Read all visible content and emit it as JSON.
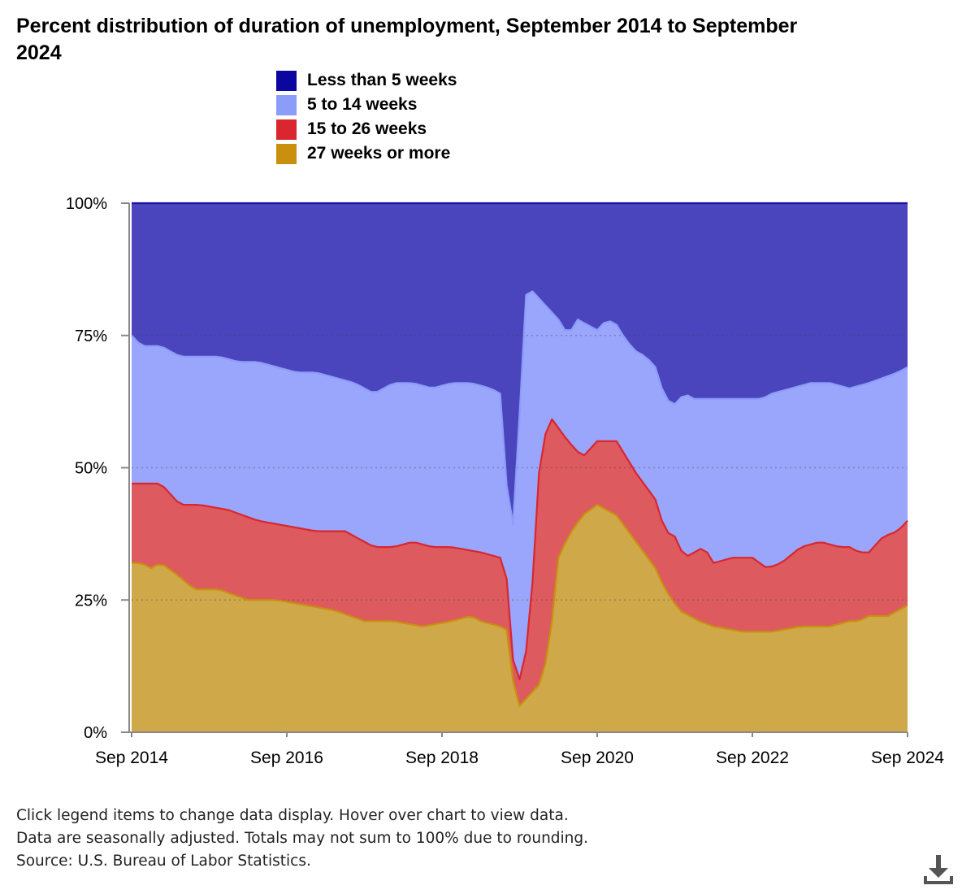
{
  "title": "Percent distribution of duration of unemployment, September 2014 to September 2024",
  "notes": [
    "Click legend items to change data display. Hover over chart to view data.",
    "Data are seasonally adjusted. Totals may not sum to 100% due to rounding.",
    "Source: U.S. Bureau of Labor Statistics."
  ],
  "download_icon": "download-icon",
  "chart_data": {
    "type": "area",
    "stacked": true,
    "x_start": "2014-09",
    "x_end": "2024-09",
    "x_ticks": [
      "Sep 2014",
      "Sep 2016",
      "Sep 2018",
      "Sep 2020",
      "Sep 2022",
      "Sep 2024"
    ],
    "y_ticks": [
      "0%",
      "25%",
      "50%",
      "75%",
      "100%"
    ],
    "ylim": [
      0,
      100
    ],
    "grid": true,
    "legend_position": "top",
    "series": [
      {
        "name": "27 weeks or more",
        "color": "#c8900e",
        "fill": "#cfa84a",
        "keypoints": [
          [
            0,
            32
          ],
          [
            2,
            32
          ],
          [
            4,
            31
          ],
          [
            6,
            32
          ],
          [
            9,
            30
          ],
          [
            13,
            27
          ],
          [
            18,
            27
          ],
          [
            24,
            25
          ],
          [
            30,
            25
          ],
          [
            36,
            24
          ],
          [
            42,
            23
          ],
          [
            48,
            21
          ],
          [
            54,
            21
          ],
          [
            60,
            20
          ],
          [
            66,
            21
          ],
          [
            70,
            22
          ],
          [
            72,
            21
          ],
          [
            76,
            20
          ],
          [
            78,
            19
          ],
          [
            79,
            5
          ],
          [
            80,
            5
          ],
          [
            82,
            7
          ],
          [
            84,
            9
          ],
          [
            86,
            15
          ],
          [
            88,
            33
          ],
          [
            90,
            37
          ],
          [
            93,
            41
          ],
          [
            96,
            43
          ],
          [
            100,
            41
          ],
          [
            104,
            36
          ],
          [
            108,
            31
          ],
          [
            110,
            27
          ],
          [
            113,
            23
          ],
          [
            117,
            21
          ],
          [
            120,
            20
          ],
          [
            126,
            19
          ],
          [
            132,
            19
          ],
          [
            138,
            20
          ],
          [
            144,
            20
          ],
          [
            148,
            21
          ],
          [
            150,
            21
          ],
          [
            152,
            22
          ],
          [
            156,
            22
          ],
          [
            158,
            23
          ],
          [
            160,
            24
          ]
        ]
      },
      {
        "name": "15 to 26 weeks",
        "color": "#d9262f",
        "fill": "#dd5a5f",
        "keypoints": [
          [
            0,
            47
          ],
          [
            6,
            47
          ],
          [
            10,
            43
          ],
          [
            14,
            43
          ],
          [
            20,
            42
          ],
          [
            26,
            40
          ],
          [
            32,
            39
          ],
          [
            38,
            38
          ],
          [
            44,
            38
          ],
          [
            50,
            35
          ],
          [
            54,
            35
          ],
          [
            58,
            36
          ],
          [
            62,
            35
          ],
          [
            66,
            35
          ],
          [
            72,
            34
          ],
          [
            76,
            33
          ],
          [
            78,
            27
          ],
          [
            79,
            7
          ],
          [
            80,
            10
          ],
          [
            82,
            18
          ],
          [
            84,
            49
          ],
          [
            86,
            60
          ],
          [
            90,
            55
          ],
          [
            93,
            52
          ],
          [
            96,
            55
          ],
          [
            100,
            55
          ],
          [
            104,
            49
          ],
          [
            108,
            44
          ],
          [
            110,
            38
          ],
          [
            112,
            37
          ],
          [
            114,
            33
          ],
          [
            118,
            35
          ],
          [
            120,
            32
          ],
          [
            124,
            33
          ],
          [
            128,
            33
          ],
          [
            131,
            31
          ],
          [
            134,
            32
          ],
          [
            138,
            35
          ],
          [
            142,
            36
          ],
          [
            146,
            35
          ],
          [
            148,
            35
          ],
          [
            150,
            34
          ],
          [
            152,
            34
          ],
          [
            155,
            37
          ],
          [
            158,
            38
          ],
          [
            160,
            40
          ]
        ]
      },
      {
        "name": "5 to 14 weeks",
        "color": "#8c9cf9",
        "fill": "#9aa6fb",
        "keypoints": [
          [
            0,
            75
          ],
          [
            2,
            73
          ],
          [
            6,
            73
          ],
          [
            10,
            71
          ],
          [
            14,
            71
          ],
          [
            18,
            71
          ],
          [
            22,
            70
          ],
          [
            26,
            70
          ],
          [
            30,
            69
          ],
          [
            34,
            68
          ],
          [
            38,
            68
          ],
          [
            42,
            67
          ],
          [
            46,
            66
          ],
          [
            50,
            64
          ],
          [
            54,
            66
          ],
          [
            58,
            66
          ],
          [
            62,
            65
          ],
          [
            66,
            66
          ],
          [
            70,
            66
          ],
          [
            74,
            65
          ],
          [
            76,
            64
          ],
          [
            78,
            38
          ],
          [
            79,
            40
          ],
          [
            80,
            60
          ],
          [
            81,
            82
          ],
          [
            82,
            84
          ],
          [
            84,
            82
          ],
          [
            86,
            80
          ],
          [
            88,
            78
          ],
          [
            90,
            75
          ],
          [
            92,
            78
          ],
          [
            94,
            77
          ],
          [
            96,
            76
          ],
          [
            98,
            78
          ],
          [
            100,
            77
          ],
          [
            102,
            74
          ],
          [
            104,
            72
          ],
          [
            106,
            71
          ],
          [
            108,
            69
          ],
          [
            110,
            63
          ],
          [
            112,
            62
          ],
          [
            114,
            64
          ],
          [
            116,
            63
          ],
          [
            118,
            63
          ],
          [
            120,
            63
          ],
          [
            124,
            63
          ],
          [
            128,
            63
          ],
          [
            130,
            63
          ],
          [
            132,
            64
          ],
          [
            136,
            65
          ],
          [
            140,
            66
          ],
          [
            144,
            66
          ],
          [
            148,
            65
          ],
          [
            152,
            66
          ],
          [
            155,
            67
          ],
          [
            158,
            68
          ],
          [
            160,
            69
          ]
        ]
      },
      {
        "name": "Less than 5 weeks",
        "color": "#1a0fa0",
        "fill": "#4b45bd",
        "keypoints": [
          [
            0,
            100
          ],
          [
            160,
            100
          ]
        ]
      }
    ]
  }
}
